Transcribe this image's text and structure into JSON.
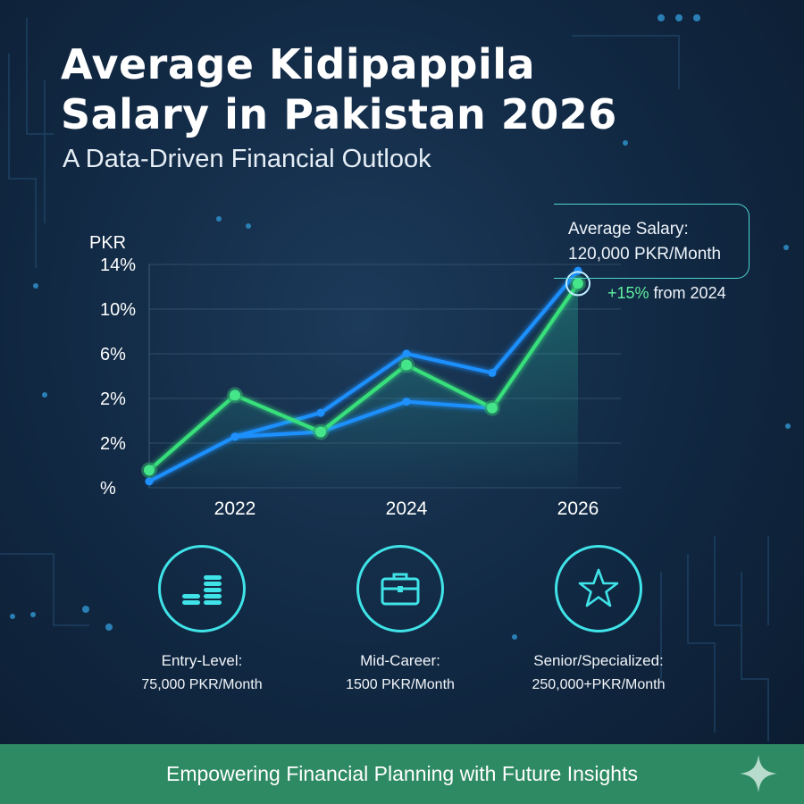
{
  "title_line1": "Average Kidipappila",
  "title_line2": "Salary in Pakistan 2026",
  "subtitle": "A Data-Driven Financial Outlook",
  "chart_data": {
    "type": "line",
    "ylabel": "PKR",
    "y_tick_labels": [
      "14%",
      "10%",
      "6%",
      "2%",
      "2%",
      "%"
    ],
    "x_tick_labels": [
      "2022",
      "2024",
      "2026"
    ],
    "x": [
      2021,
      2022,
      2023,
      2024,
      2025,
      2026
    ],
    "series": [
      {
        "color": "#1e90ff",
        "values": [
          0.4,
          3.2,
          4.7,
          8.4,
          7.2,
          13.6
        ],
        "x": [
          2021,
          2022,
          2023,
          2024,
          2025,
          2026
        ]
      },
      {
        "color": "#1e90ff",
        "values": [
          3.2,
          3.5,
          5.4,
          5.0
        ],
        "x": [
          2022,
          2023,
          2024,
          2025
        ]
      },
      {
        "color": "#38e07b",
        "values": [
          1.1,
          5.8,
          3.5,
          7.7,
          5.0,
          12.8
        ],
        "x": [
          2021,
          2022,
          2023,
          2024,
          2025,
          2026
        ]
      }
    ],
    "ylim": [
      0,
      14
    ],
    "grid": true
  },
  "callout": {
    "title": "Average Salary:",
    "value": "120,000 PKR/Month",
    "change_pct": "+15%",
    "change_text": " from 2024"
  },
  "tiers": [
    {
      "icon": "coins-icon",
      "label": "Entry-Level:",
      "value": "75,000 PKR/Month"
    },
    {
      "icon": "briefcase-icon",
      "label": "Mid-Career:",
      "value": "1500 PKR/Month"
    },
    {
      "icon": "star-icon",
      "label": "Senior/Specialized:",
      "value": "250,000+PKR/Month"
    }
  ],
  "footer": "Empowering Financial Planning with Future Insights",
  "colors": {
    "accent": "#3fe3e8",
    "green": "#38e07b",
    "blue": "#1e90ff",
    "footer_bg": "#2e8a62"
  }
}
